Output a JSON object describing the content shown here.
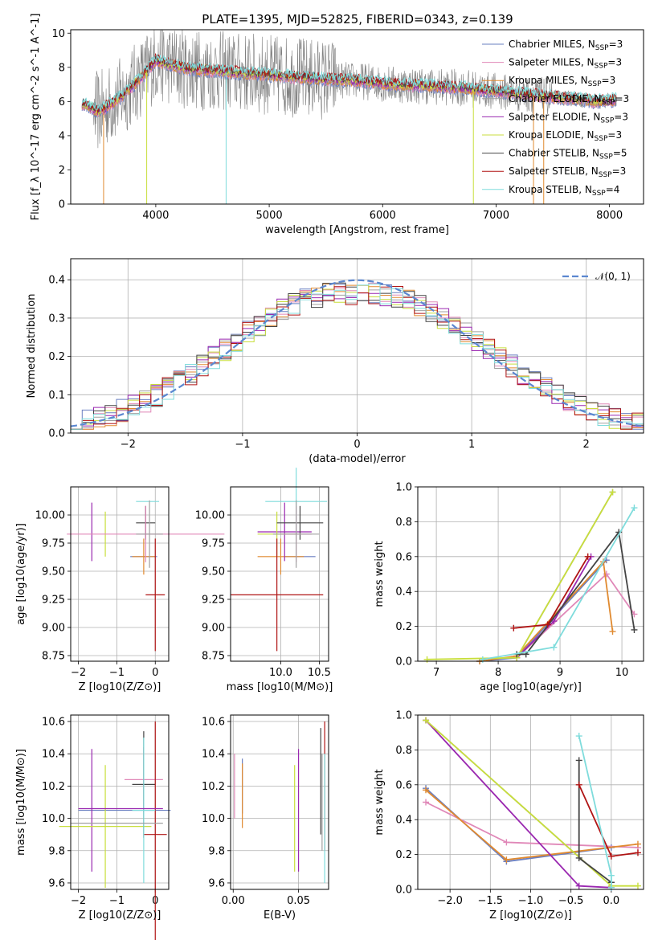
{
  "title": "PLATE=1395, MJD=52825, FIBERID=0343, z=0.139",
  "models": [
    {
      "name": "Chabrier MILES",
      "nssp": "3",
      "color": "#6a7fc1"
    },
    {
      "name": "Salpeter MILES",
      "nssp": "3",
      "color": "#e088b8"
    },
    {
      "name": "Kroupa MILES",
      "nssp": "3",
      "color": "#e08a30"
    },
    {
      "name": "Chabrier ELODIE",
      "nssp": "3",
      "color": "#a0a0a0"
    },
    {
      "name": "Salpeter ELODIE",
      "nssp": "3",
      "color": "#9a28b0"
    },
    {
      "name": "Kroupa ELODIE",
      "nssp": "3",
      "color": "#c8de3c"
    },
    {
      "name": "Chabrier STELIB",
      "nssp": "5",
      "color": "#444444"
    },
    {
      "name": "Salpeter STELIB",
      "nssp": "3",
      "color": "#b01414"
    },
    {
      "name": "Kroupa STELIB",
      "nssp": "4",
      "color": "#7fdcdc"
    }
  ],
  "panels": {
    "spectrum": {
      "xlabel": "wavelength [Angstrom, rest frame]",
      "ylabel": "Flux [f_λ 10^-17 erg cm^-2 s^-1 A^-1]",
      "xticks": [
        "4000",
        "5000",
        "6000",
        "7000",
        "8000"
      ],
      "yticks": [
        "0",
        "2",
        "4",
        "6",
        "8",
        "10"
      ]
    },
    "residuals": {
      "xlabel": "(data-model)/error",
      "ylabel": "Normed distribution",
      "xticks": [
        "−2",
        "−1",
        "0",
        "1",
        "2"
      ],
      "yticks": [
        "0.0",
        "0.1",
        "0.2",
        "0.3",
        "0.4"
      ],
      "legend": "𝒩(0, 1)"
    },
    "age_z": {
      "xlabel": "Z [log10(Z/Z⊙)]",
      "ylabel": "age  [log10(age/yr)]",
      "xticks": [
        "−2",
        "−1",
        "0"
      ],
      "yticks": [
        "8.75",
        "9.00",
        "9.25",
        "9.50",
        "9.75",
        "10.00"
      ]
    },
    "age_mass": {
      "xlabel": "mass [log10(M/M⊙)]",
      "xticks": [
        "10.0",
        "10.5"
      ],
      "yticks": [
        "8.75",
        "9.00",
        "9.25",
        "9.50",
        "9.75",
        "10.00"
      ]
    },
    "weight_age": {
      "xlabel": "age  [log10(age/yr)]",
      "ylabel": "mass weight",
      "xticks": [
        "7",
        "8",
        "9",
        "10"
      ],
      "yticks": [
        "0.0",
        "0.2",
        "0.4",
        "0.6",
        "0.8",
        "1.0"
      ]
    },
    "mass_z": {
      "xlabel": "Z [log10(Z/Z⊙)]",
      "ylabel": "mass [log10(M/M⊙)]",
      "xticks": [
        "−2",
        "−1",
        "0"
      ],
      "yticks": [
        "9.6",
        "9.8",
        "10.0",
        "10.2",
        "10.4",
        "10.6"
      ]
    },
    "mass_ebv": {
      "xlabel": "E(B-V)",
      "xticks": [
        "0.00",
        "0.05"
      ],
      "yticks": [
        "9.6",
        "9.8",
        "10.0",
        "10.2",
        "10.4",
        "10.6"
      ]
    },
    "weight_z": {
      "xlabel": "Z [log10(Z/Z⊙)]",
      "ylabel": "mass weight",
      "xticks": [
        "−2.0",
        "−1.5",
        "−1.0",
        "−0.5",
        "0.0"
      ],
      "yticks": [
        "0.0",
        "0.2",
        "0.4",
        "0.6",
        "0.8",
        "1.0"
      ]
    }
  },
  "chart_data": [
    {
      "type": "line",
      "panel": "spectrum",
      "title": "PLATE=1395, MJD=52825, FIBERID=0343, z=0.139",
      "xlabel": "wavelength [Angstrom, rest frame]",
      "ylabel": "Flux [f_λ 10^-17 erg cm^-2 s^-1 A^-1]",
      "xlim": [
        3250,
        8300
      ],
      "ylim": [
        0,
        10.2
      ],
      "data_noise_color": "#808080",
      "continuum": {
        "x": [
          3350,
          3500,
          3700,
          3900,
          4000,
          4100,
          4300,
          4500,
          4700,
          4900,
          5100,
          5300,
          5500,
          5800,
          6100,
          6400,
          6700,
          7000,
          7300,
          7600,
          7900,
          8050
        ],
        "y": [
          5.9,
          5.4,
          6.3,
          7.6,
          8.4,
          8.2,
          7.9,
          7.8,
          7.7,
          7.6,
          7.5,
          7.4,
          7.3,
          7.2,
          7.0,
          6.9,
          6.8,
          6.6,
          6.4,
          6.2,
          6.0,
          6.1
        ]
      },
      "grid": false
    },
    {
      "type": "step",
      "panel": "residuals",
      "xlabel": "(data-model)/error",
      "ylabel": "Normed distribution",
      "xlim": [
        -2.5,
        2.5
      ],
      "ylim": [
        0,
        0.455
      ],
      "bin_width": 0.1,
      "normal_reference": "𝒩(0, 1)",
      "grid": true
    },
    {
      "type": "scatter",
      "panel": "age_z",
      "xlim": [
        -2.2,
        0.35
      ],
      "ylim": [
        8.7,
        10.25
      ],
      "points": [
        {
          "model": "Chabrier MILES",
          "x": -0.3,
          "y": 9.63,
          "xerr": 0.35,
          "yerr": 0.0
        },
        {
          "model": "Kroupa MILES",
          "x": -0.3,
          "y": 9.63,
          "xerr": 0.3,
          "yerr": 0.16
        },
        {
          "model": "Salpeter ELODIE",
          "x": -1.65,
          "y": 9.85,
          "xerr": 0.0,
          "yerr": 0.26
        },
        {
          "model": "Kroupa ELODIE",
          "x": -1.3,
          "y": 9.83,
          "xerr": 0.0,
          "yerr": 0.2
        },
        {
          "model": "Chabrier STELIB",
          "x": -0.25,
          "y": 9.93,
          "xerr": 0.25,
          "yerr": 0.15
        },
        {
          "model": "Salpeter STELIB",
          "x": 0.0,
          "y": 9.29,
          "xerr": 0.25,
          "yerr": 0.5
        },
        {
          "model": "Kroupa STELIB",
          "x": -0.2,
          "y": 10.12,
          "xerr": 0.3,
          "yerr": 0.0
        },
        {
          "model": "Salpeter MILES",
          "x": -0.25,
          "y": 9.83,
          "xerr": 2.05,
          "yerr": 0.25
        },
        {
          "model": "Chabrier ELODIE",
          "x": -0.15,
          "y": 9.83,
          "xerr": 0.35,
          "yerr": 0.3
        }
      ]
    },
    {
      "type": "scatter",
      "panel": "age_mass",
      "xlim": [
        9.35,
        10.62
      ],
      "ylim": [
        8.7,
        10.25
      ],
      "points": [
        {
          "model": "Chabrier MILES",
          "x": 10.25,
          "y": 9.63,
          "xerr": 0.2,
          "yerr": 0.0
        },
        {
          "model": "Kroupa MILES",
          "x": 10.0,
          "y": 9.63,
          "xerr": 0.3,
          "yerr": 0.16
        },
        {
          "model": "Salpeter ELODIE",
          "x": 10.05,
          "y": 9.85,
          "xerr": 0.35,
          "yerr": 0.26
        },
        {
          "model": "Kroupa ELODIE",
          "x": 9.95,
          "y": 9.83,
          "xerr": 0.25,
          "yerr": 0.2
        },
        {
          "model": "Chabrier STELIB",
          "x": 10.25,
          "y": 9.93,
          "xerr": 0.3,
          "yerr": 0.15
        },
        {
          "model": "Salpeter STELIB",
          "x": 9.95,
          "y": 9.29,
          "xerr": 0.6,
          "yerr": 0.5
        },
        {
          "model": "Kroupa STELIB",
          "x": 10.2,
          "y": 10.12,
          "xerr": 0.4,
          "yerr": 0.3
        },
        {
          "model": "Salpeter MILES",
          "x": 10.2,
          "y": 9.83,
          "xerr": 0.2,
          "yerr": 0.25
        },
        {
          "model": "Chabrier ELODIE",
          "x": 10.2,
          "y": 9.83,
          "xerr": 0.3,
          "yerr": 0.3
        }
      ]
    },
    {
      "type": "line",
      "panel": "weight_age",
      "xlabel": "age  [log10(age/yr)]",
      "ylabel": "mass weight",
      "xlim": [
        6.7,
        10.35
      ],
      "ylim": [
        0,
        1
      ],
      "series": [
        {
          "name": "Chabrier MILES",
          "x": [
            7.7,
            8.3,
            9.75
          ],
          "y": [
            0.0,
            0.02,
            0.58
          ]
        },
        {
          "name": "Salpeter MILES",
          "x": [
            8.3,
            9.75,
            10.2
          ],
          "y": [
            0.02,
            0.5,
            0.27
          ]
        },
        {
          "name": "Kroupa MILES",
          "x": [
            7.7,
            8.3,
            9.7,
            9.85
          ],
          "y": [
            0.0,
            0.03,
            0.57,
            0.17
          ]
        },
        {
          "name": "Chabrier ELODIE",
          "x": [
            8.3,
            9.85
          ],
          "y": [
            0.02,
            0.97
          ]
        },
        {
          "name": "Salpeter ELODIE",
          "x": [
            8.3,
            8.9,
            9.5
          ],
          "y": [
            0.02,
            0.23,
            0.6
          ]
        },
        {
          "name": "Kroupa ELODIE",
          "x": [
            6.85,
            8.3,
            9.85
          ],
          "y": [
            0.01,
            0.02,
            0.97
          ]
        },
        {
          "name": "Chabrier STELIB",
          "x": [
            8.3,
            8.45,
            9.95,
            10.2
          ],
          "y": [
            0.04,
            0.04,
            0.74,
            0.18
          ]
        },
        {
          "name": "Salpeter STELIB",
          "x": [
            8.25,
            8.8,
            9.45
          ],
          "y": [
            0.19,
            0.21,
            0.6
          ]
        },
        {
          "name": "Kroupa STELIB",
          "x": [
            7.75,
            8.9,
            10.2
          ],
          "y": [
            0.01,
            0.08,
            0.88
          ]
        }
      ]
    },
    {
      "type": "scatter",
      "panel": "mass_z",
      "xlim": [
        -2.2,
        0.35
      ],
      "ylim": [
        9.56,
        10.64
      ],
      "points": [
        {
          "model": "Chabrier MILES",
          "x": -0.8,
          "y": 10.05,
          "xerr": 1.2,
          "yerr": 0.0
        },
        {
          "model": "Salpeter MILES",
          "x": -0.3,
          "y": 10.24,
          "xerr": 0.5,
          "yerr": 0.2
        },
        {
          "model": "Salpeter ELODIE",
          "x": -1.65,
          "y": 10.05,
          "xerr": 0.0,
          "yerr": 0.38
        },
        {
          "model": "Kroupa ELODIE",
          "x": -1.3,
          "y": 9.95,
          "xerr": 1.2,
          "yerr": 0.38
        },
        {
          "model": "Chabrier STELIB",
          "x": -0.3,
          "y": 10.21,
          "xerr": 0.3,
          "yerr": 0.33
        },
        {
          "model": "Salpeter STELIB",
          "x": 0.0,
          "y": 9.9,
          "xerr": 0.3,
          "yerr": 0.7
        },
        {
          "model": "Kroupa STELIB",
          "x": -0.3,
          "y": 10.05,
          "xerr": 0.3,
          "yerr": 0.45
        },
        {
          "model": "Salpeter ELODIE 2",
          "x": -0.9,
          "y": 10.06,
          "xerr": 1.1,
          "yerr": 0.0
        },
        {
          "model": "Chabrier ELODIE",
          "x": -1.0,
          "y": 9.97,
          "xerr": 1.2,
          "yerr": 0.0
        }
      ]
    },
    {
      "type": "scatter",
      "panel": "mass_ebv",
      "xlim": [
        -0.002,
        0.073
      ],
      "ylim": [
        9.56,
        10.64
      ],
      "points": [
        {
          "model": "Salpeter MILES",
          "x": 0.001,
          "y": 10.2,
          "yerr": 0.2
        },
        {
          "model": "Chabrier MILES",
          "x": 0.007,
          "y": 10.2,
          "yerr": 0.17
        },
        {
          "model": "Kroupa MILES",
          "x": 0.007,
          "y": 10.14,
          "yerr": 0.2
        },
        {
          "model": "Kroupa ELODIE",
          "x": 0.047,
          "y": 10.0,
          "yerr": 0.33
        },
        {
          "model": "Salpeter ELODIE",
          "x": 0.05,
          "y": 10.05,
          "xerr": 0.0,
          "yerr": 0.38
        },
        {
          "model": "Chabrier STELIB",
          "x": 0.067,
          "y": 10.23,
          "yerr": 0.33
        },
        {
          "model": "Salpeter STELIB",
          "x": 0.07,
          "y": 10.2,
          "yerr": 0.4
        },
        {
          "model": "Kroupa STELIB",
          "x": 0.07,
          "y": 10.0,
          "yerr": 0.4
        },
        {
          "model": "Chabrier ELODIE",
          "x": 0.068,
          "y": 10.1,
          "yerr": 0.3
        }
      ]
    },
    {
      "type": "line",
      "panel": "weight_z",
      "xlabel": "Z [log10(Z/Z⊙)]",
      "ylabel": "mass weight",
      "xlim": [
        -2.4,
        0.4
      ],
      "ylim": [
        0,
        1
      ],
      "series": [
        {
          "name": "Chabrier MILES",
          "x": [
            -2.3,
            -1.3,
            0.0
          ],
          "y": [
            0.58,
            0.16,
            0.24
          ]
        },
        {
          "name": "Salpeter MILES",
          "x": [
            -2.3,
            -1.3,
            0.33
          ],
          "y": [
            0.5,
            0.27,
            0.24
          ]
        },
        {
          "name": "Kroupa MILES",
          "x": [
            -2.3,
            -1.3,
            0.33
          ],
          "y": [
            0.57,
            0.17,
            0.26
          ]
        },
        {
          "name": "Chabrier ELODIE",
          "x": [
            -2.3,
            0.0
          ],
          "y": [
            0.97,
            0.02
          ]
        },
        {
          "name": "Salpeter ELODIE",
          "x": [
            -2.3,
            -0.4,
            0.0
          ],
          "y": [
            0.97,
            0.02,
            0.01
          ]
        },
        {
          "name": "Kroupa ELODIE",
          "x": [
            -2.3,
            0.0,
            0.33
          ],
          "y": [
            0.97,
            0.02,
            0.02
          ]
        },
        {
          "name": "Chabrier STELIB",
          "x": [
            -0.4,
            -0.4,
            0.0,
            0.0
          ],
          "y": [
            0.74,
            0.18,
            0.04,
            0.04
          ]
        },
        {
          "name": "Salpeter STELIB",
          "x": [
            -0.4,
            0.0,
            0.33
          ],
          "y": [
            0.6,
            0.19,
            0.21
          ]
        },
        {
          "name": "Kroupa STELIB",
          "x": [
            -0.4,
            0.0,
            0.0
          ],
          "y": [
            0.88,
            0.08,
            0.01
          ]
        }
      ]
    }
  ]
}
